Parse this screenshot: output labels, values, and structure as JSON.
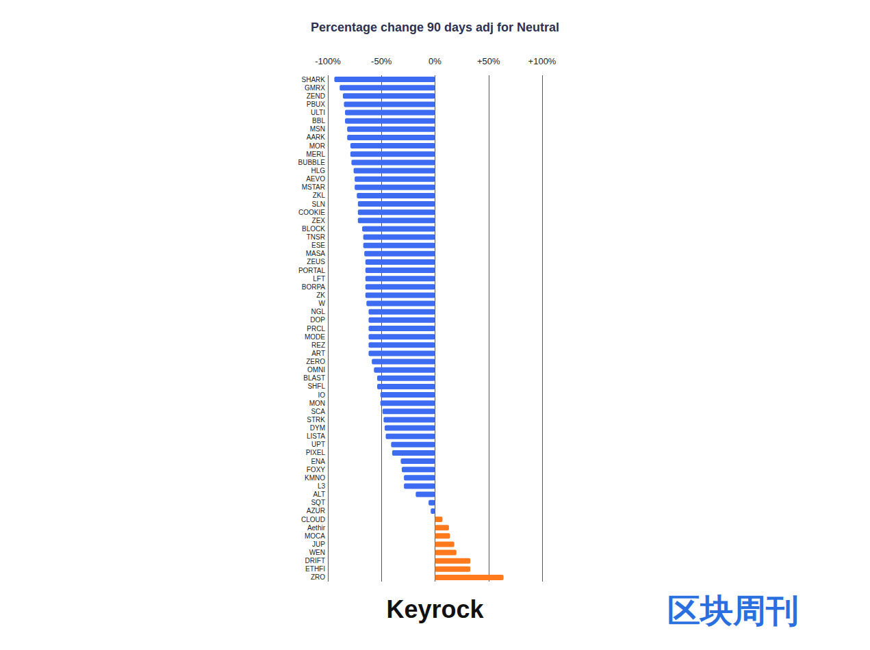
{
  "chart_data": {
    "type": "bar",
    "orientation": "horizontal",
    "title": "Percentage change 90 days adj for Neutral",
    "categories": [
      "SHARK",
      "GMRX",
      "ZEND",
      "PBUX",
      "ULTI",
      "BBL",
      "MSN",
      "AARK",
      "MOR",
      "MERL",
      "BUBBLE",
      "HLG",
      "AEVO",
      "MSTAR",
      "ZKL",
      "SLN",
      "COOKIE",
      "ZEX",
      "BLOCK",
      "TNSR",
      "ESE",
      "MASA",
      "ZEUS",
      "PORTAL",
      "LFT",
      "BORPA",
      "ZK",
      "W",
      "NGL",
      "DOP",
      "PRCL",
      "MODE",
      "REZ",
      "ART",
      "ZERO",
      "OMNI",
      "BLAST",
      "SHFL",
      "IO",
      "MON",
      "SCA",
      "STRK",
      "DYM",
      "LISTA",
      "UPT",
      "PIXEL",
      "ENA",
      "FOXY",
      "KMNO",
      "L3",
      "ALT",
      "SQT",
      "AZUR",
      "CLOUD",
      "Aethir",
      "MOCA",
      "JUP",
      "WEN",
      "DRIFT",
      "ETHFI",
      "ZRO"
    ],
    "values": [
      -94,
      -89,
      -86,
      -85,
      -84,
      -84,
      -82,
      -82,
      -79,
      -79,
      -78,
      -76,
      -75,
      -75,
      -73,
      -72,
      -72,
      -72,
      -68,
      -67,
      -67,
      -66,
      -65,
      -65,
      -65,
      -65,
      -65,
      -64,
      -62,
      -62,
      -62,
      -62,
      -62,
      -62,
      -59,
      -57,
      -54,
      -54,
      -51,
      -51,
      -49,
      -48,
      -47,
      -46,
      -41,
      -40,
      -32,
      -31,
      -29,
      -29,
      -18,
      -6,
      -4,
      7,
      13,
      14,
      18,
      20,
      33,
      33,
      64
    ],
    "colors": [
      "#3d6cf2",
      "#3d6cf2",
      "#3d6cf2",
      "#3d6cf2",
      "#3d6cf2",
      "#3d6cf2",
      "#3d6cf2",
      "#3d6cf2",
      "#3d6cf2",
      "#3d6cf2",
      "#3d6cf2",
      "#3d6cf2",
      "#3d6cf2",
      "#3d6cf2",
      "#3d6cf2",
      "#3d6cf2",
      "#3d6cf2",
      "#3d6cf2",
      "#3d6cf2",
      "#3d6cf2",
      "#3d6cf2",
      "#3d6cf2",
      "#3d6cf2",
      "#3d6cf2",
      "#3d6cf2",
      "#3d6cf2",
      "#3d6cf2",
      "#3d6cf2",
      "#3d6cf2",
      "#3d6cf2",
      "#3d6cf2",
      "#3d6cf2",
      "#3d6cf2",
      "#3d6cf2",
      "#3d6cf2",
      "#3d6cf2",
      "#3d6cf2",
      "#3d6cf2",
      "#3d6cf2",
      "#3d6cf2",
      "#3d6cf2",
      "#3d6cf2",
      "#3d6cf2",
      "#3d6cf2",
      "#3d6cf2",
      "#3d6cf2",
      "#3d6cf2",
      "#3d6cf2",
      "#3d6cf2",
      "#3d6cf2",
      "#3d6cf2",
      "#3d6cf2",
      "#3d6cf2",
      "#ff7a1c",
      "#ff7a1c",
      "#ff7a1c",
      "#ff7a1c",
      "#ff7a1c",
      "#ff7a1c",
      "#ff7a1c",
      "#ff7a1c"
    ],
    "xlim": [
      -100,
      100
    ],
    "xticks": [
      {
        "value": -100,
        "label": "-100%"
      },
      {
        "value": -50,
        "label": "-50%"
      },
      {
        "value": 0,
        "label": "0%"
      },
      {
        "value": 50,
        "label": "+50%"
      },
      {
        "value": 100,
        "label": "+100%"
      }
    ],
    "grid": true,
    "annotations": [
      "Keyrock",
      "区块周刊"
    ]
  }
}
